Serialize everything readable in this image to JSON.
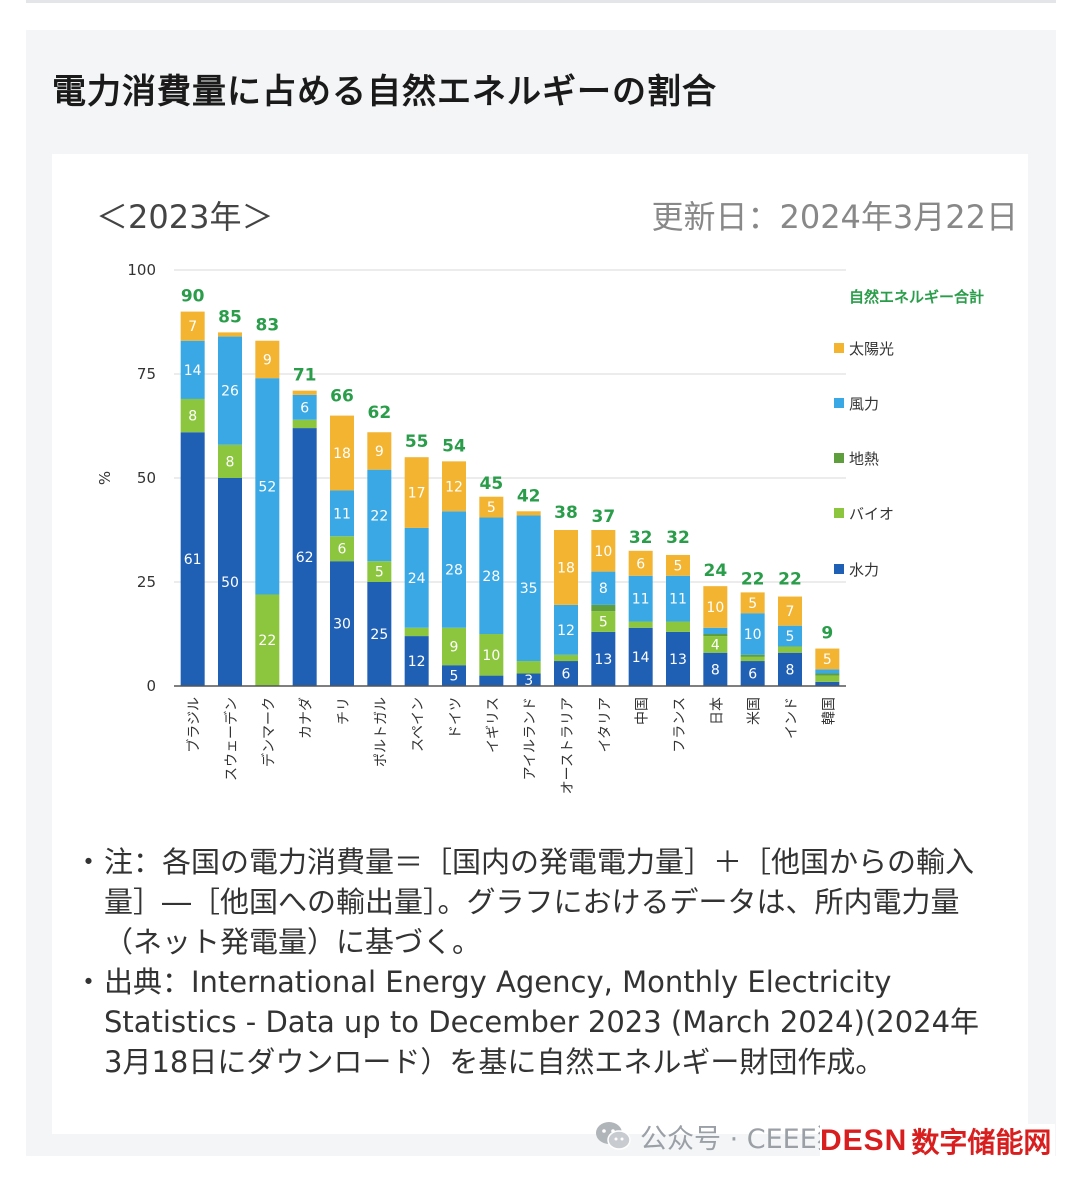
{
  "panel_title": "電力消費量に占める自然エネルギーの割合",
  "year_label": "＜2023年＞",
  "update_label": "更新日：2024年3月22日",
  "chart_data": {
    "type": "bar",
    "stacked": true,
    "ylabel": "%",
    "ylim": [
      0,
      100
    ],
    "yticks": [
      0,
      25,
      50,
      75,
      100
    ],
    "categories": [
      "ブラジル",
      "スウェーデン",
      "デンマーク",
      "カナダ",
      "チリ",
      "ポルトガル",
      "スペイン",
      "ドイツ",
      "イギリス",
      "アイルランド",
      "オーストラリア",
      "イタリア",
      "中国",
      "フランス",
      "日本",
      "米国",
      "インド",
      "韓国"
    ],
    "totals": [
      90,
      85,
      83,
      71,
      66,
      62,
      55,
      54,
      45,
      42,
      38,
      37,
      32,
      32,
      24,
      22,
      22,
      9
    ],
    "total_label": "自然エネルギー合計",
    "series": [
      {
        "name": "水力",
        "color": "#1f5fb4",
        "values": [
          61,
          50,
          0,
          62,
          30,
          25,
          12,
          5,
          2.5,
          3,
          6,
          13,
          14,
          13,
          8,
          6,
          8,
          1
        ],
        "labels": [
          "61",
          "50",
          "",
          "62",
          "30",
          "25",
          "12",
          "5",
          "",
          "3",
          "6",
          "13",
          "14",
          "13",
          "8",
          "6",
          "8",
          ""
        ]
      },
      {
        "name": "バイオ",
        "color": "#8cc63e",
        "values": [
          8,
          8,
          22,
          2,
          6,
          5,
          2,
          9,
          10,
          3,
          1.5,
          5,
          1.5,
          2.5,
          4,
          1,
          1.5,
          1.5
        ],
        "labels": [
          "8",
          "8",
          "22",
          "",
          "6",
          "5",
          "",
          "9",
          "10",
          "",
          "",
          "5",
          "",
          "",
          "4",
          "",
          "",
          ""
        ]
      },
      {
        "name": "地熱",
        "color": "#5f9e3c",
        "values": [
          0,
          0,
          0,
          0,
          0,
          0,
          0,
          0,
          0,
          0,
          0,
          1.5,
          0,
          0,
          0.5,
          0.5,
          0,
          0.5
        ],
        "labels": [
          "",
          "",
          "",
          "",
          "",
          "",
          "",
          "",
          "",
          "",
          "",
          "",
          "",
          "",
          "",
          "",
          "",
          ""
        ]
      },
      {
        "name": "風力",
        "color": "#3aa8e4",
        "values": [
          14,
          26,
          52,
          6,
          11,
          22,
          24,
          28,
          28,
          35,
          12,
          8,
          11,
          11,
          1.5,
          10,
          5,
          1
        ],
        "labels": [
          "14",
          "26",
          "52",
          "6",
          "11",
          "22",
          "24",
          "28",
          "28",
          "35",
          "12",
          "8",
          "11",
          "11",
          "",
          "10",
          "5",
          ""
        ]
      },
      {
        "name": "太陽光",
        "color": "#f2b431",
        "values": [
          7,
          1,
          9,
          1,
          18,
          9,
          17,
          12,
          5,
          1,
          18,
          10,
          6,
          5,
          10,
          5,
          7,
          5
        ],
        "labels": [
          "7",
          "",
          "9",
          "",
          "18",
          "9",
          "17",
          "12",
          "5",
          "",
          "18",
          "10",
          "6",
          "5",
          "10",
          "5",
          "7",
          "5"
        ]
      }
    ],
    "legend_order": [
      "太陽光",
      "風力",
      "地熱",
      "バイオ",
      "水力"
    ],
    "total_color": "#2a9d4a"
  },
  "notes": [
    "注：各国の電力消費量＝［国内の発電電力量］＋［他国からの輸入量］―［他国への輸出量］。グラフにおけるデータは、所内電力量（ネット発電量）に基づく。",
    "出典：International Energy Agency, Monthly Electricity Statistics - Data up to December 2023 (March 2024)(2024年3月18日にダウンロード）を基に自然エネルギー財団作成。"
  ],
  "watermark": "公众号 · CEEE独立研究与思考",
  "brand": {
    "latin": "DESN",
    "cjk": "数字储能网"
  }
}
